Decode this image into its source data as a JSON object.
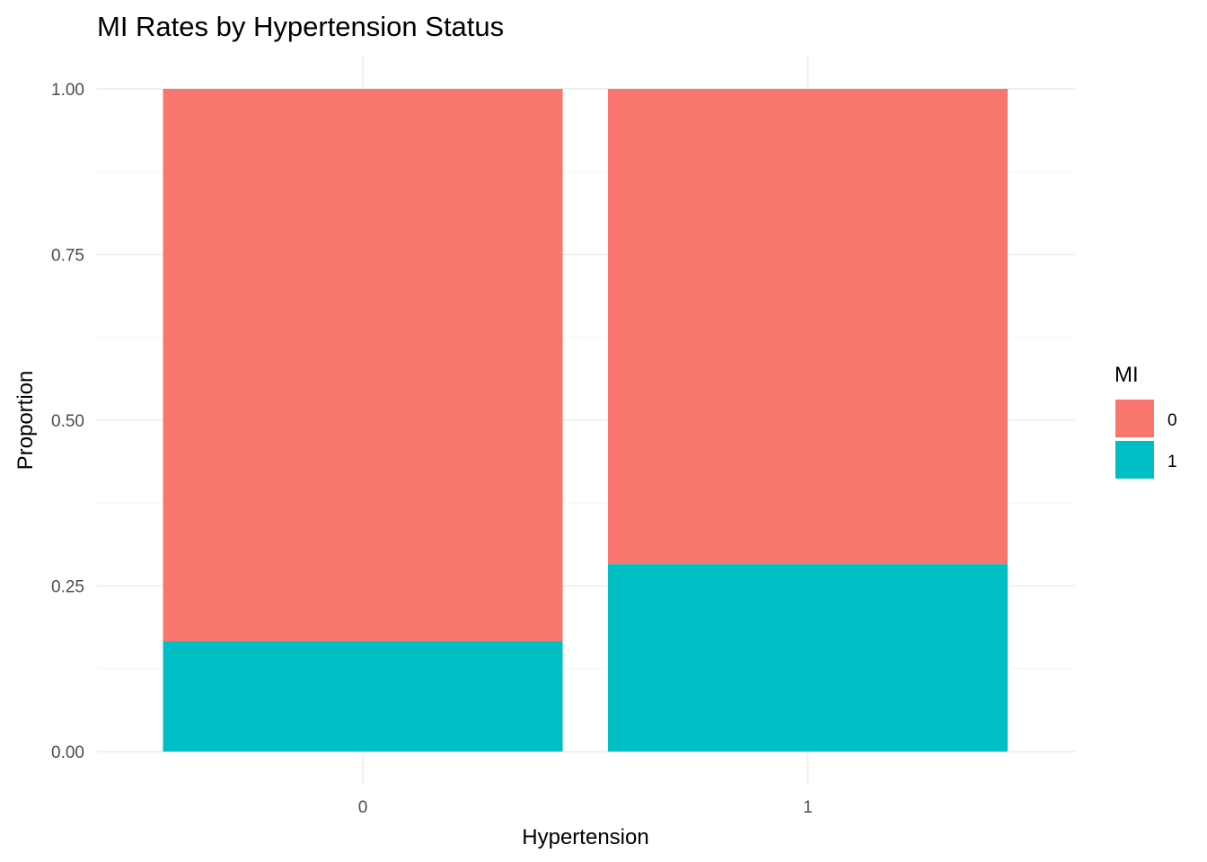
{
  "chart_data": {
    "type": "bar",
    "stacked": true,
    "title": "MI Rates by Hypertension Status",
    "xlabel": "Hypertension",
    "ylabel": "Proportion",
    "categories": [
      "0",
      "1"
    ],
    "series": [
      {
        "name": "0",
        "values": [
          0.834,
          0.717
        ],
        "color": "#F8766D"
      },
      {
        "name": "1",
        "values": [
          0.166,
          0.283
        ],
        "color": "#00BFC4"
      }
    ],
    "ylim": [
      0,
      1
    ],
    "yticks": [
      "0.00",
      "0.25",
      "0.50",
      "0.75",
      "1.00"
    ],
    "grid": true,
    "legend": {
      "title": "MI",
      "position": "right"
    }
  }
}
